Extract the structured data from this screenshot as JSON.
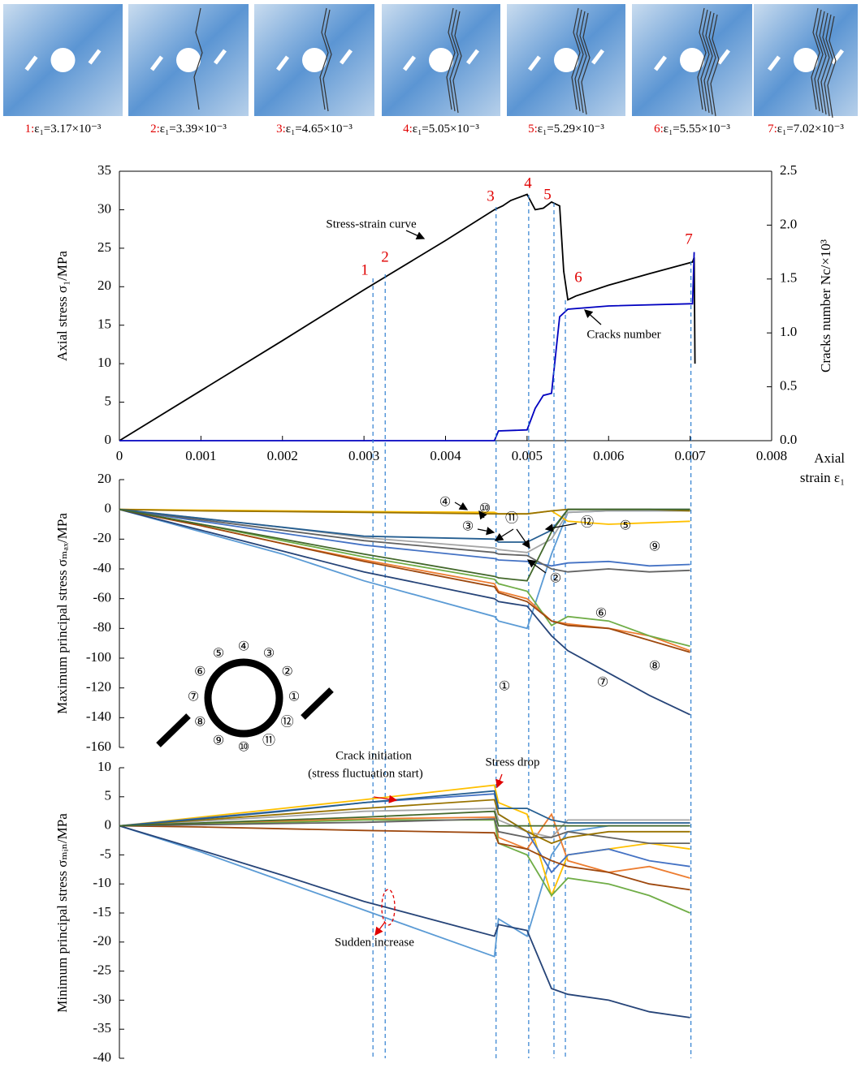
{
  "panels": [
    {
      "label": "1:",
      "strain": "ε₁=3.17×10⁻³"
    },
    {
      "label": "2:",
      "strain": "ε₁=3.39×10⁻³"
    },
    {
      "label": "3:",
      "strain": "ε₁=4.65×10⁻³"
    },
    {
      "label": "4:",
      "strain": "ε₁=5.05×10⁻³"
    },
    {
      "label": "5:",
      "strain": "ε₁=5.29×10⁻³"
    },
    {
      "label": "6:",
      "strain": "ε₁=5.55×10⁻³"
    },
    {
      "label": "7:",
      "strain": "ε₁=7.02×10⁻³"
    }
  ],
  "chart_data": [
    {
      "type": "line",
      "frame": true,
      "xlabel": [
        "Axial",
        "strain ε₁"
      ],
      "ylabel": "Axial stress σ₁/MPa",
      "y2label": "Cracks number Nc/×10³",
      "xlim": [
        0,
        0.008
      ],
      "xticks": [
        0,
        0.001,
        0.002,
        0.003,
        0.004,
        0.005,
        0.006,
        0.007,
        0.008
      ],
      "ylim": [
        0,
        35
      ],
      "yticks": [
        0,
        5,
        10,
        15,
        20,
        25,
        30,
        35
      ],
      "y2lim": [
        0,
        2.5
      ],
      "y2ticks": [
        {
          "value": 0,
          "label": "0.0"
        },
        0.5,
        {
          "value": 1,
          "label": "1.0"
        },
        1.5,
        {
          "value": 2,
          "label": "2.0"
        },
        2.5
      ],
      "stage_lines": [
        0.00311,
        0.00326,
        0.00462,
        0.00502,
        0.00533,
        0.00547,
        0.00701
      ],
      "stage_labels": [
        "1",
        "2",
        "3",
        "4",
        "5",
        "6",
        "7"
      ],
      "series": [
        {
          "name": "Stress-strain curve",
          "color": "#000000",
          "x": [
            0,
            0.001,
            0.002,
            0.003,
            0.004,
            0.0046,
            0.0047,
            0.0048,
            0.0049,
            0.005,
            0.0051,
            0.0052,
            0.0053,
            0.0054,
            0.00545,
            0.0055,
            0.0056,
            0.006,
            0.0065,
            0.00703,
            0.00705,
            0.00706
          ],
          "values": [
            0,
            6.5,
            13,
            19.6,
            26,
            30,
            30.5,
            31.2,
            31.6,
            32,
            30,
            30.2,
            31,
            30.5,
            22,
            18.3,
            18.8,
            20.2,
            21.7,
            23.2,
            23.8,
            10
          ]
        },
        {
          "name": "Cracks number",
          "color": "#0000c0",
          "axis": "y2",
          "x": [
            0,
            0.0046,
            0.00465,
            0.005,
            0.0051,
            0.0052,
            0.0053,
            0.0054,
            0.0055,
            0.006,
            0.007,
            0.00703,
            0.00705
          ],
          "values": [
            0,
            0,
            0.09,
            0.1,
            0.3,
            0.42,
            0.44,
            1.15,
            1.22,
            1.25,
            1.27,
            1.27,
            1.75
          ]
        }
      ]
    },
    {
      "type": "line",
      "ylabel": "Maximum principal stress σₘₐₓ/MPa",
      "xlim": [
        0,
        0.008
      ],
      "ylim": [
        -160,
        20
      ],
      "yticks": [
        -160,
        -140,
        -120,
        -100,
        -80,
        -60,
        -40,
        -20,
        0,
        20
      ],
      "x": [
        0,
        0.001,
        0.002,
        0.003,
        0.0046,
        0.00465,
        0.005,
        0.0053,
        0.0055,
        0.006,
        0.0065,
        0.007
      ],
      "series": [
        {
          "name": "①",
          "color": "#5b9bd5",
          "values": [
            0,
            -15,
            -30,
            -48,
            -72,
            -75,
            -80,
            -30,
            -2,
            -1,
            -1,
            -1
          ]
        },
        {
          "name": "②",
          "color": "#ed7d31",
          "values": [
            0,
            -11,
            -23,
            -34,
            -50,
            -55,
            -60,
            -75,
            -77,
            -80,
            -85,
            -95
          ]
        },
        {
          "name": "③",
          "color": "#a5a5a5",
          "values": [
            0,
            -6,
            -12,
            -19,
            -26,
            -27,
            -29,
            -20,
            -2,
            -1,
            -1,
            -1
          ]
        },
        {
          "name": "④",
          "color": "#ffc000",
          "values": [
            0,
            -0.5,
            -1,
            -1.5,
            -2,
            -3,
            -3,
            -1,
            -8,
            -10,
            -9,
            -8
          ]
        },
        {
          "name": "⑤",
          "color": "#4472c4",
          "values": [
            0,
            -8,
            -16,
            -24,
            -33,
            -34,
            -35,
            -38,
            -36,
            -35,
            -38,
            -37
          ]
        },
        {
          "name": "⑥",
          "color": "#70ad47",
          "values": [
            0,
            -10,
            -21,
            -32,
            -47,
            -50,
            -55,
            -78,
            -72,
            -75,
            -85,
            -92
          ]
        },
        {
          "name": "⑦",
          "color": "#264478",
          "values": [
            0,
            -14,
            -28,
            -42,
            -60,
            -62,
            -65,
            -85,
            -95,
            -110,
            -125,
            -138
          ]
        },
        {
          "name": "⑧",
          "color": "#9e480e",
          "values": [
            0,
            -11,
            -23,
            -35,
            -52,
            -56,
            -62,
            -75,
            -78,
            -80,
            -88,
            -96
          ]
        },
        {
          "name": "⑨",
          "color": "#636363",
          "values": [
            0,
            -7,
            -14,
            -21,
            -29,
            -30,
            -31,
            -40,
            -42,
            -40,
            -42,
            -41
          ]
        },
        {
          "name": "⑩",
          "color": "#997300",
          "values": [
            0,
            -1,
            -1.5,
            -2,
            -3,
            -3,
            -3,
            -1,
            0,
            0,
            0,
            -1
          ]
        },
        {
          "name": "⑪",
          "color": "#255e91",
          "values": [
            0,
            -6,
            -12,
            -18,
            -20,
            -22,
            -22,
            -14,
            0,
            0,
            0,
            0
          ]
        },
        {
          "name": "⑫",
          "color": "#43682b",
          "values": [
            0,
            -10,
            -20,
            -30,
            -45,
            -46,
            -48,
            -15,
            0,
            0,
            0,
            0
          ]
        }
      ]
    },
    {
      "type": "line",
      "ylabel": "Minimum principal stress σₘᵢₙ/MPa",
      "xlim": [
        0,
        0.008
      ],
      "ylim": [
        -40,
        10
      ],
      "yticks": [
        -40,
        -35,
        -30,
        -25,
        -20,
        -15,
        -10,
        -5,
        0,
        5,
        10
      ],
      "annotations": [
        "Crack initiation",
        "(stress fluctuation start)",
        "Stress drop",
        "Sudden increase"
      ],
      "x": [
        0,
        0.001,
        0.002,
        0.003,
        0.0046,
        0.00465,
        0.005,
        0.0053,
        0.0055,
        0.006,
        0.0065,
        0.007
      ],
      "series": [
        {
          "color": "#5b9bd5",
          "values": [
            0,
            -4.5,
            -9.5,
            -14.5,
            -22.5,
            -16,
            -19,
            -5,
            -1,
            0,
            0,
            0
          ]
        },
        {
          "color": "#ed7d31",
          "values": [
            0,
            0.4,
            0.8,
            1.2,
            1.5,
            -2,
            -4,
            2,
            -6,
            -8,
            -7,
            -9
          ]
        },
        {
          "color": "#a5a5a5",
          "values": [
            0,
            0.8,
            1.6,
            2.5,
            3,
            1,
            -1,
            -2,
            1,
            1,
            1,
            1
          ]
        },
        {
          "color": "#ffc000",
          "values": [
            0,
            1.5,
            3,
            4.5,
            7,
            4,
            2,
            -12,
            -5,
            -4,
            -3,
            -4
          ]
        },
        {
          "color": "#4472c4",
          "values": [
            0,
            1.3,
            2.6,
            4,
            5.5,
            2,
            -1,
            -8,
            -5,
            -4,
            -6,
            -7
          ]
        },
        {
          "color": "#70ad47",
          "values": [
            0,
            0.3,
            0.6,
            1,
            1,
            -3,
            -5,
            -12,
            -9,
            -10,
            -12,
            -15
          ]
        },
        {
          "color": "#264478",
          "values": [
            0,
            -4.2,
            -8.5,
            -13,
            -19,
            -17,
            -18,
            -28,
            -29,
            -30,
            -32,
            -33
          ]
        },
        {
          "color": "#9e480e",
          "values": [
            0,
            -0.2,
            -0.5,
            -0.8,
            -1.2,
            -3,
            -4,
            -6,
            -7,
            -8,
            -10,
            -11
          ]
        },
        {
          "color": "#636363",
          "values": [
            0,
            0.2,
            0.4,
            0.6,
            1.2,
            -1,
            -2,
            -2,
            -1,
            -2,
            -3,
            -3
          ]
        },
        {
          "color": "#997300",
          "values": [
            0,
            1,
            2,
            3,
            4.5,
            2,
            -1,
            -3,
            -2,
            -1,
            -1,
            -1
          ]
        },
        {
          "color": "#255e91",
          "values": [
            0,
            1.2,
            2.5,
            4,
            6,
            3,
            3,
            1,
            0.5,
            0.5,
            0.5,
            0.5
          ]
        },
        {
          "color": "#43682b",
          "values": [
            0,
            0.5,
            1,
            1.5,
            2.5,
            0,
            0,
            0,
            0,
            0,
            0,
            0
          ]
        }
      ]
    }
  ]
}
